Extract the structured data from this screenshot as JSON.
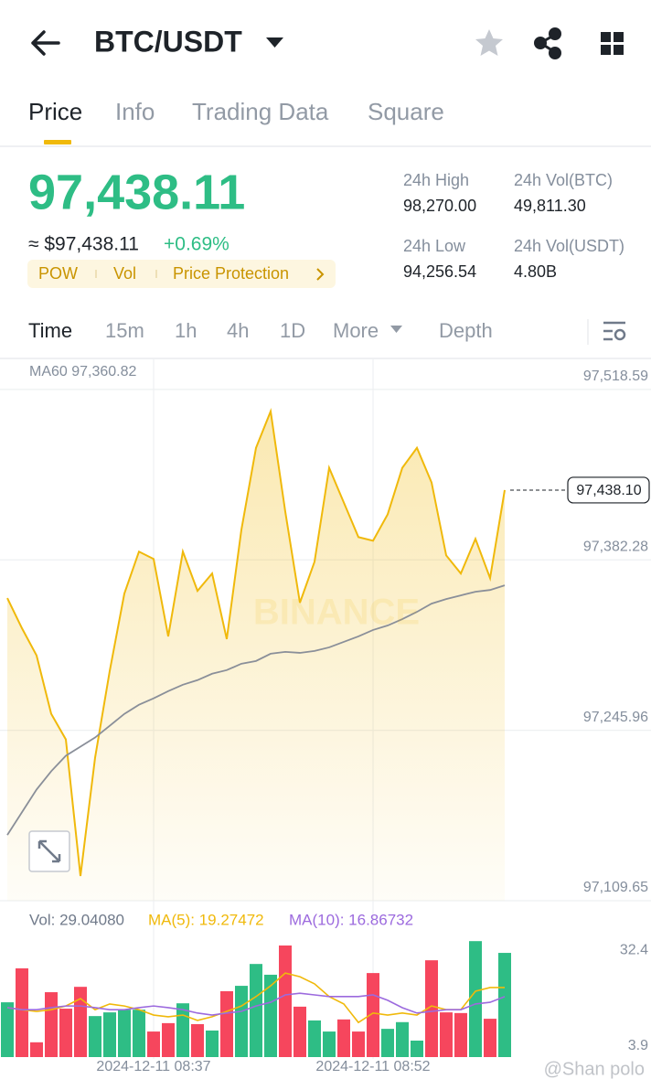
{
  "header": {
    "title": "BTC/USDT"
  },
  "tabs": [
    "Price",
    "Info",
    "Trading Data",
    "Square"
  ],
  "ticker": {
    "price": "97,438.11",
    "approx": "≈ $97,438.11",
    "change": "+0.69%",
    "tags": [
      "POW",
      "Vol",
      "Price Protection"
    ],
    "stats": [
      {
        "label": "24h High",
        "value": "98,270.00"
      },
      {
        "label": "24h Vol(BTC)",
        "value": "49,811.30"
      },
      {
        "label": "24h Low",
        "value": "94,256.54"
      },
      {
        "label": "24h Vol(USDT)",
        "value": "4.80B"
      }
    ]
  },
  "intervals": [
    "Time",
    "15m",
    "1h",
    "4h",
    "1D",
    "More",
    "Depth"
  ],
  "watermark": "BINANCE",
  "credit": "@Shan polo",
  "chart_data": [
    {
      "type": "line",
      "categories": [
        null,
        null,
        null,
        null,
        null,
        null,
        null,
        null,
        null,
        null,
        "2024-12-11 08:37",
        null,
        null,
        null,
        null,
        null,
        null,
        null,
        null,
        null,
        null,
        null,
        null,
        null,
        null,
        "2024-12-11 08:52",
        null,
        null,
        null,
        null,
        null,
        null,
        null,
        null,
        null
      ],
      "series": [
        {
          "color": "#f0b90b",
          "values": [
            97351.7,
            97327.6,
            97305.8,
            97259.1,
            97238.7,
            97129.4,
            97224.1,
            97293.4,
            97355.3,
            97388.9,
            97383.0,
            97321.1,
            97388.9,
            97357.5,
            97371.4,
            97318.9,
            97406.3,
            97471.9,
            97501.1,
            97420.9,
            97348.0,
            97380.8,
            97455.9,
            97428.2,
            97400.5,
            97397.6,
            97418.7,
            97455.9,
            97471.9,
            97444.2,
            97385.9,
            97371.4,
            97399.1,
            97367.7,
            97438.1
          ]
        },
        {
          "name": "MA60 97,360.82",
          "color": "#8a8f99",
          "values": [
            97162.2,
            97180.4,
            97198.6,
            97213.2,
            97225.6,
            97232.9,
            97240.2,
            97249.6,
            97259.1,
            97266.4,
            97271.5,
            97277.3,
            97282.4,
            97286.1,
            97291.2,
            97294.1,
            97299.2,
            97301.4,
            97307.2,
            97308.7,
            97307.9,
            97309.4,
            97312.3,
            97316.7,
            97321.1,
            97326.2,
            97329.8,
            97334.9,
            97340.7,
            97347.3,
            97350.9,
            97353.9,
            97356.8,
            97358.2,
            97361.9
          ]
        }
      ],
      "ylim": [
        97109.65,
        97541.2
      ],
      "yticks": [
        {
          "value": 97518.59,
          "label": "97,518.59"
        },
        {
          "value": 97382.28,
          "label": "97,382.28"
        },
        {
          "value": 97245.96,
          "label": "97,245.96"
        },
        {
          "value": 97109.65,
          "label": "97,109.65"
        }
      ],
      "last_price": {
        "value": 97438.1,
        "label": "97,438.10"
      },
      "grid": true
    },
    {
      "type": "bar",
      "series": [
        {
          "name": "Vol: 29.04080",
          "colors": [
            "#2ebd85",
            "#f6465d",
            "#f6465d",
            "#f6465d",
            "#f6465d",
            "#f6465d",
            "#2ebd85",
            "#2ebd85",
            "#2ebd85",
            "#2ebd85",
            "#f6465d",
            "#f6465d",
            "#2ebd85",
            "#f6465d",
            "#2ebd85",
            "#f6465d",
            "#2ebd85",
            "#2ebd85",
            "#2ebd85",
            "#f6465d",
            "#f6465d",
            "#2ebd85",
            "#2ebd85",
            "#f6465d",
            "#f6465d",
            "#f6465d",
            "#2ebd85",
            "#2ebd85",
            "#2ebd85",
            "#f6465d",
            "#f6465d",
            "#f6465d",
            "#2ebd85",
            "#f6465d",
            "#2ebd85"
          ],
          "values": [
            16.9,
            27.0,
            5.0,
            19.9,
            15.0,
            21.5,
            12.8,
            13.9,
            14.7,
            14.7,
            8.2,
            10.7,
            16.6,
            10.4,
            8.5,
            20.2,
            21.8,
            28.3,
            25.1,
            33.8,
            15.6,
            11.5,
            8.2,
            11.8,
            8.2,
            25.6,
            9.0,
            11.0,
            5.5,
            29.4,
            13.9,
            13.7,
            35.1,
            12.0,
            31.6
          ]
        },
        {
          "name": "MA(5): 19.27472",
          "color": "#f0b90b",
          "values": [
            15.3,
            14.7,
            14.2,
            14.7,
            15.8,
            18.0,
            14.7,
            16.4,
            15.8,
            14.7,
            13.1,
            12.6,
            13.1,
            11.5,
            12.6,
            14.2,
            15.8,
            18.6,
            21.8,
            25.6,
            24.5,
            22.4,
            18.6,
            16.4,
            10.9,
            13.7,
            13.1,
            13.7,
            13.1,
            15.8,
            14.7,
            14.7,
            20.2,
            21.3,
            21.3
          ]
        },
        {
          "name": "MA(10): 16.86732",
          "color": "#9c6ade",
          "values": [
            15.3,
            14.7,
            14.7,
            15.3,
            15.8,
            15.8,
            15.3,
            14.7,
            14.7,
            15.3,
            15.8,
            15.3,
            14.7,
            13.7,
            13.1,
            13.7,
            14.2,
            15.8,
            16.9,
            19.1,
            19.6,
            19.1,
            18.6,
            18.6,
            18.6,
            19.1,
            17.5,
            15.3,
            13.7,
            14.2,
            14.7,
            14.7,
            16.4,
            16.9,
            18.6
          ]
        }
      ],
      "ylim": [
        0.6,
        37.6
      ],
      "yticks": [
        32.4,
        3.9
      ]
    }
  ]
}
